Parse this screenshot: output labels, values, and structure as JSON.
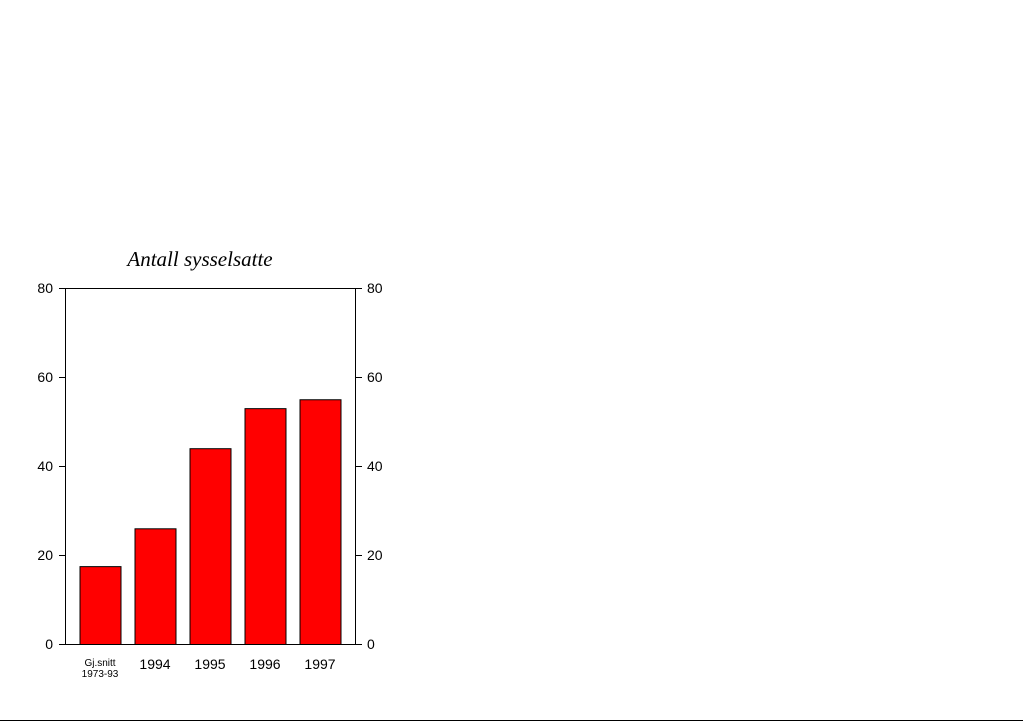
{
  "chart_data": {
    "type": "bar",
    "title": "Antall sysselsatte",
    "categories": [
      [
        "Gj.snitt",
        "1973-93"
      ],
      [
        "1994"
      ],
      [
        "1995"
      ],
      [
        "1996"
      ],
      [
        "1997"
      ]
    ],
    "values": [
      17.5,
      26,
      44,
      53,
      55
    ],
    "ylim": [
      0,
      80
    ],
    "yticks": [
      "0",
      "20",
      "40",
      "60",
      "80"
    ],
    "ytick_values": [
      0,
      20,
      40,
      60,
      80
    ],
    "xlabel": "",
    "ylabel": "",
    "bar_color": "#ff0000",
    "grid": false,
    "right_axis": true
  }
}
